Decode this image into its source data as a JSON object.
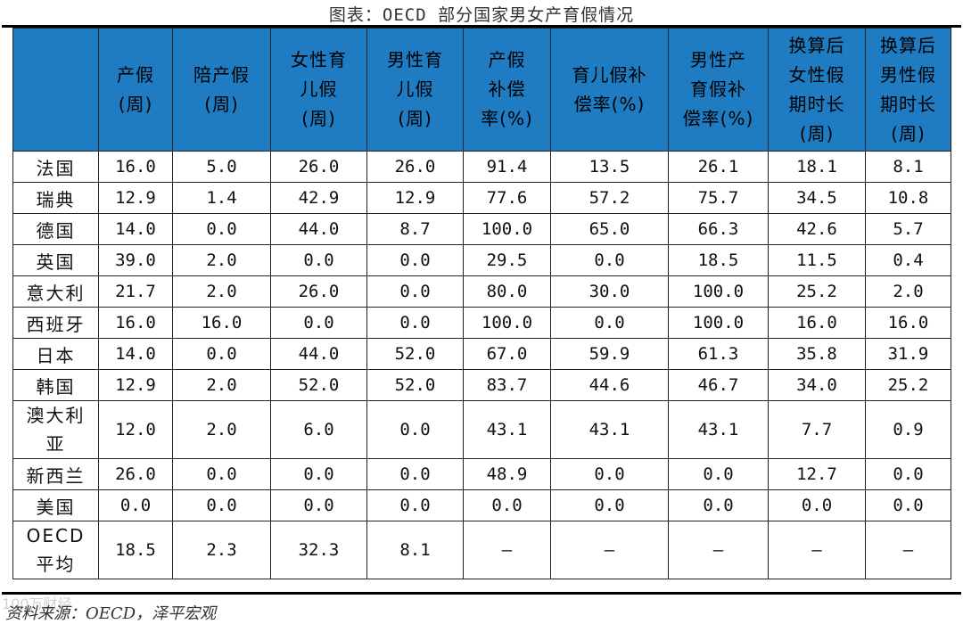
{
  "title": "图表：OECD 部分国家男女产育假情况",
  "headers": [
    "",
    "产假\n(周)",
    "陪产假\n(周)",
    "女性育\n儿假\n(周)",
    "男性育\n儿假\n(周)",
    "产假\n补偿\n率(%)",
    "育儿假补\n偿率(%)",
    "男性产\n育假补\n偿率(%)",
    "换算后\n女性假\n期时长\n(周)",
    "换算后\n男性假\n期时长\n(周)"
  ],
  "rows": [
    [
      "法国",
      "16.0",
      "5.0",
      "26.0",
      "26.0",
      "91.4",
      "13.5",
      "26.1",
      "18.1",
      "8.1"
    ],
    [
      "瑞典",
      "12.9",
      "1.4",
      "42.9",
      "12.9",
      "77.6",
      "57.2",
      "75.7",
      "34.5",
      "10.8"
    ],
    [
      "德国",
      "14.0",
      "0.0",
      "44.0",
      "8.7",
      "100.0",
      "65.0",
      "66.3",
      "42.6",
      "5.7"
    ],
    [
      "英国",
      "39.0",
      "2.0",
      "0.0",
      "0.0",
      "29.5",
      "0.0",
      "18.5",
      "11.5",
      "0.4"
    ],
    [
      "意大利",
      "21.7",
      "2.0",
      "26.0",
      "0.0",
      "80.0",
      "30.0",
      "100.0",
      "25.2",
      "2.0"
    ],
    [
      "西班牙",
      "16.0",
      "16.0",
      "0.0",
      "0.0",
      "100.0",
      "0.0",
      "100.0",
      "16.0",
      "16.0"
    ],
    [
      "日本",
      "14.0",
      "0.0",
      "44.0",
      "52.0",
      "67.0",
      "59.9",
      "61.3",
      "35.8",
      "31.9"
    ],
    [
      "韩国",
      "12.9",
      "2.0",
      "52.0",
      "52.0",
      "83.7",
      "44.6",
      "46.7",
      "34.0",
      "25.2"
    ],
    [
      "澳大利\n亚",
      "12.0",
      "2.0",
      "6.0",
      "0.0",
      "43.1",
      "43.1",
      "43.1",
      "7.7",
      "0.9"
    ],
    [
      "新西兰",
      "26.0",
      "0.0",
      "0.0",
      "0.0",
      "48.9",
      "0.0",
      "0.0",
      "12.7",
      "0.0"
    ],
    [
      "美国",
      "0.0",
      "0.0",
      "0.0",
      "0.0",
      "0.0",
      "0.0",
      "0.0",
      "0.0",
      "0.0"
    ],
    [
      "OECD\n平均",
      "18.5",
      "2.3",
      "32.3",
      "8.1",
      "–",
      "–",
      "–",
      "–",
      "–"
    ]
  ],
  "source": "资料来源：OECD，泽平宏观",
  "watermark": "100万财经"
}
